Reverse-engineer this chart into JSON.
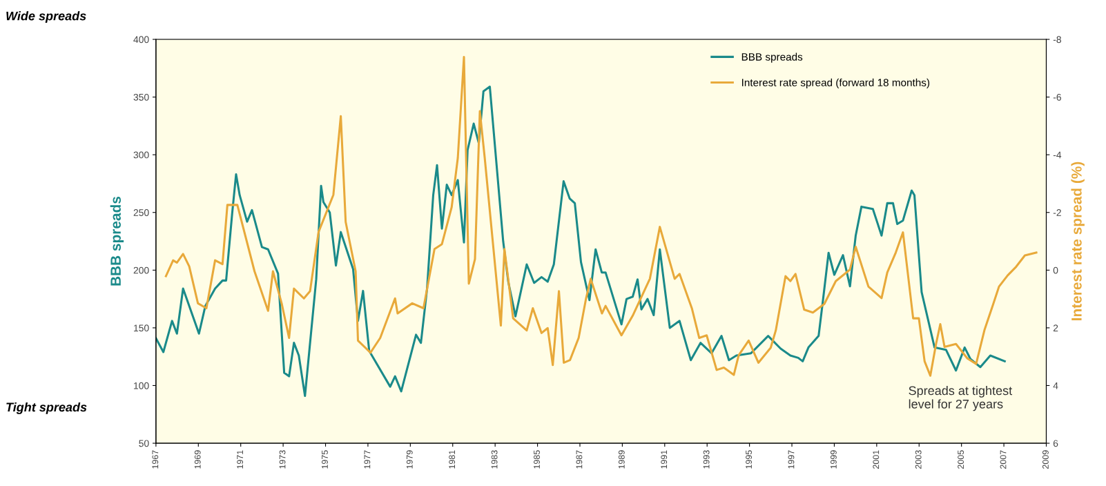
{
  "chart_data": {
    "type": "line",
    "ylabel": "BBB spreads",
    "y2label": "Interest rate spread (%)",
    "annotations": [
      "Wide spreads",
      "Tight spreads",
      "Spreads at tightest\nlevel for 27 years"
    ],
    "xlim": [
      1967,
      2009
    ],
    "xticks": [
      1967,
      1969,
      1971,
      1973,
      1975,
      1977,
      1979,
      1981,
      1983,
      1985,
      1987,
      1989,
      1991,
      1993,
      1995,
      1997,
      1999,
      2001,
      2003,
      2005,
      2007,
      2009
    ],
    "ylim": [
      50,
      400
    ],
    "yticks": [
      50,
      100,
      150,
      200,
      250,
      300,
      350,
      400
    ],
    "y2lim": [
      6,
      -8
    ],
    "y2ticks": [
      -8,
      -6,
      -4,
      -2,
      0,
      2,
      4,
      6
    ],
    "grid": false,
    "legend": "top right",
    "series": [
      {
        "name": "BBB spreads",
        "color": "#1a8a8a",
        "x": [
          1967.0,
          1967.35,
          1967.76,
          1967.99,
          1968.28,
          1969.03,
          1969.33,
          1969.79,
          1970.14,
          1970.31,
          1970.6,
          1970.78,
          1970.95,
          1971.3,
          1971.53,
          1972.0,
          1972.29,
          1972.76,
          1973.05,
          1973.28,
          1973.51,
          1973.74,
          1974.03,
          1974.56,
          1974.79,
          1974.9,
          1975.2,
          1975.49,
          1975.72,
          1976.3,
          1976.53,
          1976.77,
          1977.06,
          1978.05,
          1978.28,
          1978.57,
          1979.27,
          1979.5,
          1979.79,
          1980.08,
          1980.26,
          1980.49,
          1980.72,
          1980.95,
          1981.24,
          1981.53,
          1981.7,
          1981.99,
          1982.23,
          1982.45,
          1982.75,
          1983.38,
          1983.62,
          1983.96,
          1984.49,
          1984.84,
          1985.19,
          1985.48,
          1985.77,
          1986.23,
          1986.52,
          1986.76,
          1987.05,
          1987.45,
          1987.74,
          1988.03,
          1988.21,
          1988.96,
          1989.2,
          1989.49,
          1989.72,
          1989.9,
          1990.19,
          1990.48,
          1990.77,
          1991.24,
          1991.7,
          1992.23,
          1992.69,
          1993.21,
          1993.68,
          1994.03,
          1994.38,
          1995.07,
          1995.88,
          1996.47,
          1996.93,
          1997.3,
          1997.51,
          1997.78,
          1998.26,
          1998.46,
          1998.73,
          1999.0,
          1999.41,
          1999.74,
          2000.01,
          2000.28,
          2000.82,
          2001.23,
          2001.5,
          2001.77,
          2001.97,
          2002.24,
          2002.65,
          2002.78,
          2003.12,
          2003.73,
          2004.27,
          2004.74,
          2005.15,
          2005.42,
          2005.89,
          2006.36,
          2007.04
        ],
        "values": [
          141,
          129,
          156,
          145,
          184,
          145,
          169,
          184,
          191,
          191,
          250,
          283,
          265,
          242,
          252,
          220,
          218,
          197,
          111,
          108,
          137,
          126,
          91,
          192,
          273,
          259,
          250,
          204,
          233,
          201,
          156,
          182,
          130,
          99,
          108,
          95,
          144,
          137,
          184,
          265,
          291,
          236,
          274,
          265,
          278,
          224,
          304,
          327,
          310,
          355,
          359,
          225,
          190,
          160,
          205,
          189,
          194,
          190,
          205,
          277,
          262,
          258,
          207,
          174,
          218,
          198,
          198,
          153,
          175,
          177,
          192,
          166,
          175,
          161,
          218,
          150,
          156,
          122,
          137,
          128,
          143,
          122,
          126,
          128,
          143,
          132,
          126,
          124,
          121,
          133,
          143,
          173,
          215,
          196,
          213,
          186,
          230,
          255,
          253,
          230,
          258,
          258,
          240,
          243,
          269,
          265,
          181,
          133,
          131,
          113,
          133,
          123,
          116,
          126,
          121
        ]
      },
      {
        "name": "Interest rate spread (forward 18 months)",
        "color": "#e8a93a",
        "axis": "y2",
        "x": [
          1967.47,
          1967.81,
          1967.99,
          1968.28,
          1968.57,
          1968.98,
          1969.38,
          1969.79,
          1970.14,
          1970.37,
          1970.84,
          1971.65,
          1972.29,
          1972.52,
          1972.93,
          1973.28,
          1973.51,
          1973.98,
          1974.27,
          1974.67,
          1975.37,
          1975.72,
          1975.95,
          1976.42,
          1976.53,
          1977.12,
          1977.58,
          1978.28,
          1978.4,
          1979.09,
          1979.62,
          1980.14,
          1980.49,
          1980.95,
          1981.24,
          1981.53,
          1981.76,
          1982.05,
          1982.28,
          1982.51,
          1983.27,
          1983.44,
          1983.85,
          1984.49,
          1984.78,
          1985.19,
          1985.48,
          1985.72,
          1986.01,
          1986.24,
          1986.53,
          1986.94,
          1987.29,
          1987.51,
          1988.04,
          1988.21,
          1988.96,
          1989.49,
          1990.3,
          1990.77,
          1991.47,
          1991.7,
          1992.28,
          1992.63,
          1992.98,
          1993.45,
          1993.79,
          1994.26,
          1994.49,
          1994.96,
          1995.42,
          1996.0,
          1996.24,
          1996.7,
          1996.93,
          1997.17,
          1997.58,
          1997.99,
          1998.53,
          1999.07,
          1999.74,
          2000.01,
          2000.61,
          2001.23,
          2001.5,
          2001.9,
          2002.24,
          2002.72,
          2002.99,
          2003.26,
          2003.53,
          2003.8,
          2004.0,
          2004.2,
          2004.74,
          2005.28,
          2005.69,
          2006.09,
          2006.5,
          2006.77,
          2007.18,
          2007.58,
          2007.99,
          2008.53
        ],
        "values": [
          0.21,
          -0.34,
          -0.26,
          -0.56,
          -0.13,
          1.15,
          1.32,
          -0.34,
          -0.21,
          -2.26,
          -2.26,
          0.04,
          1.41,
          0.04,
          1.15,
          2.35,
          0.64,
          0.98,
          0.73,
          -1.32,
          -2.61,
          -5.34,
          -1.67,
          0.04,
          2.44,
          2.86,
          2.35,
          0.98,
          1.5,
          1.15,
          1.32,
          -0.73,
          -0.9,
          -2.18,
          -3.89,
          -7.39,
          0.47,
          -0.38,
          -5.51,
          -3.89,
          1.92,
          -0.73,
          1.67,
          2.09,
          1.32,
          2.18,
          2.01,
          3.29,
          0.73,
          3.21,
          3.12,
          2.35,
          0.98,
          0.3,
          1.5,
          1.24,
          2.26,
          1.58,
          0.3,
          -1.5,
          0.3,
          0.13,
          1.32,
          2.35,
          2.26,
          3.46,
          3.38,
          3.63,
          2.95,
          2.44,
          3.21,
          2.69,
          2.09,
          0.21,
          0.38,
          0.13,
          1.37,
          1.47,
          1.17,
          0.38,
          -0.02,
          -0.81,
          0.57,
          0.97,
          0.08,
          -0.61,
          -1.31,
          1.67,
          1.67,
          3.16,
          3.66,
          2.56,
          1.87,
          2.66,
          2.56,
          3.06,
          3.25,
          2.06,
          1.17,
          0.57,
          0.18,
          -0.12,
          -0.51,
          -0.61
        ]
      }
    ]
  }
}
